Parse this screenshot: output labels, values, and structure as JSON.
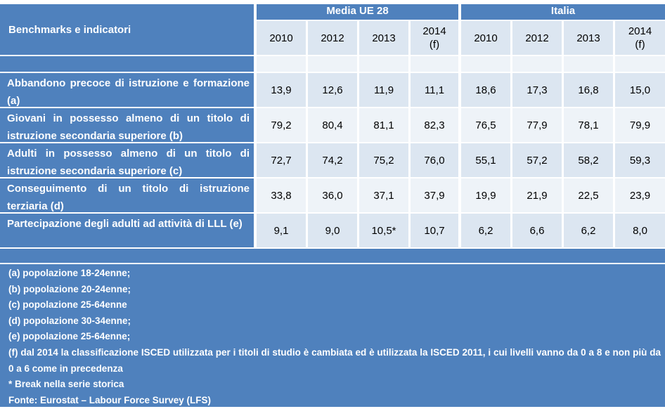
{
  "header": {
    "row_label": "Benchmarks e indicatori",
    "group_eu": "Media UE 28",
    "group_it": "Italia",
    "years": [
      "2010",
      "2012",
      "2013",
      "2014 (f)",
      "2010",
      "2012",
      "2013",
      "2014 (f)"
    ]
  },
  "rows": [
    {
      "label": "Abbandono precoce di istruzione e formazione (a)",
      "values": [
        "13,9",
        "12,6",
        "11,9",
        "11,1",
        "18,6",
        "17,3",
        "16,8",
        "15,0"
      ]
    },
    {
      "label": "Giovani in possesso almeno di un titolo di istruzione secondaria superiore (b)",
      "values": [
        "79,2",
        "80,4",
        "81,1",
        "82,3",
        "76,5",
        "77,9",
        "78,1",
        "79,9"
      ]
    },
    {
      "label": "Adulti in possesso almeno di un titolo di istruzione secondaria superiore (c)",
      "values": [
        "72,7",
        "74,2",
        "75,2",
        "76,0",
        "55,1",
        "57,2",
        "58,2",
        "59,3"
      ]
    },
    {
      "label": "Conseguimento di un titolo di istruzione terziaria (d)",
      "values": [
        "33,8",
        "36,0",
        "37,1",
        "37,9",
        "19,9",
        "21,9",
        "22,5",
        "23,9"
      ]
    },
    {
      "label": "Partecipazione degli adulti ad attività di LLL (e)",
      "values": [
        "9,1",
        "9,0",
        "10,5*",
        "10,7",
        "6,2",
        "6,6",
        "6,2",
        "8,0"
      ]
    }
  ],
  "notes": [
    "(a) popolazione 18-24enne;",
    "(b) popolazione 20-24enne;",
    "(c) popolazione 25-64enne",
    "(d) popolazione 30-34enne;",
    "(e) popolazione 25-64enne;",
    "(f) dal 2014 la classificazione ISCED utilizzata per i titoli di studio è cambiata ed è utilizzata la ISCED 2011, i cui livelli vanno da 0 a 8 e non più da 0 a 6 come in precedenza",
    "* Break nella serie storica",
    "Fonte: Eurostat – Labour Force Survey (LFS)"
  ]
}
